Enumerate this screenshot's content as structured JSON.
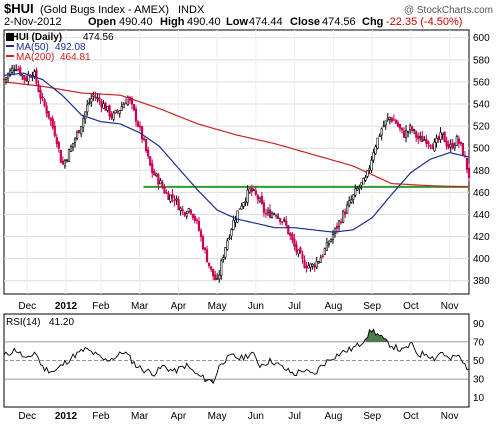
{
  "header": {
    "symbol": "$HUI",
    "name": "(Gold Bugs Index - AMEX)",
    "exchange": "INDX",
    "watermark": "@ StockCharts.com",
    "date": "2-Nov-2012",
    "open_label": "Open",
    "open": "490.40",
    "high_label": "High",
    "high": "490.40",
    "low_label": "Low",
    "low": "474.44",
    "close_label": "Close",
    "close": "474.56",
    "chg_label": "Chg",
    "chg": "-22.35 (-4.50%)"
  },
  "legend": {
    "price_label": "$HUI (Daily)",
    "price_value": "474.56",
    "ma50_label": "MA(50)",
    "ma50_value": "492.08",
    "ma200_label": "MA(200)",
    "ma200_value": "464.81",
    "rsi_label": "RSI(14)",
    "rsi_value": "41.20"
  },
  "colors": {
    "up_candle": "#000000",
    "down_candle": "#cc0055",
    "ma50": "#1f2f8f",
    "ma200": "#cc2222",
    "support": "#2a9d2a",
    "rsi_line": "#000000",
    "overbought_fill": "#4a7d4a",
    "oversold_fill": "#555555",
    "chg_negative": "#cc0000"
  },
  "chart_data": [
    {
      "type": "line",
      "title": "$HUI (Daily)",
      "x_axis_labels": [
        "Dec",
        "2012",
        "Feb",
        "Mar",
        "Apr",
        "May",
        "Jun",
        "Jul",
        "Aug",
        "Sep",
        "Oct",
        "Nov"
      ],
      "x_label_positions": [
        0.6,
        1.6,
        2.5,
        3.5,
        4.5,
        5.5,
        6.5,
        7.5,
        8.5,
        9.5,
        10.5,
        11.5
      ],
      "xlim": [
        0,
        12
      ],
      "y_ticks": [
        380,
        400,
        420,
        440,
        460,
        480,
        500,
        520,
        540,
        560,
        580,
        600
      ],
      "ylim": [
        368,
        607
      ],
      "grid": true,
      "support_level": 465,
      "price_anchors": [
        [
          0.0,
          562
        ],
        [
          0.3,
          575
        ],
        [
          0.55,
          562
        ],
        [
          0.75,
          570
        ],
        [
          0.95,
          546
        ],
        [
          1.15,
          530
        ],
        [
          1.35,
          510
        ],
        [
          1.5,
          484
        ],
        [
          1.7,
          498
        ],
        [
          1.95,
          518
        ],
        [
          2.15,
          538
        ],
        [
          2.3,
          548
        ],
        [
          2.55,
          540
        ],
        [
          2.8,
          528
        ],
        [
          3.0,
          536
        ],
        [
          3.2,
          546
        ],
        [
          3.4,
          528
        ],
        [
          3.6,
          506
        ],
        [
          3.8,
          480
        ],
        [
          4.0,
          470
        ],
        [
          4.2,
          458
        ],
        [
          4.4,
          455
        ],
        [
          4.6,
          442
        ],
        [
          4.8,
          446
        ],
        [
          5.0,
          430
        ],
        [
          5.15,
          410
        ],
        [
          5.35,
          388
        ],
        [
          5.5,
          378
        ],
        [
          5.7,
          410
        ],
        [
          5.9,
          432
        ],
        [
          6.1,
          448
        ],
        [
          6.35,
          462
        ],
        [
          6.55,
          455
        ],
        [
          6.75,
          440
        ],
        [
          7.0,
          442
        ],
        [
          7.25,
          432
        ],
        [
          7.5,
          410
        ],
        [
          7.75,
          395
        ],
        [
          7.95,
          393
        ],
        [
          8.15,
          400
        ],
        [
          8.35,
          412
        ],
        [
          8.55,
          426
        ],
        [
          8.75,
          440
        ],
        [
          8.95,
          452
        ],
        [
          9.1,
          462
        ],
        [
          9.35,
          472
        ],
        [
          9.55,
          500
        ],
        [
          9.75,
          518
        ],
        [
          9.95,
          528
        ],
        [
          10.1,
          524
        ],
        [
          10.3,
          512
        ],
        [
          10.5,
          518
        ],
        [
          10.7,
          508
        ],
        [
          10.9,
          508
        ],
        [
          11.1,
          502
        ],
        [
          11.3,
          512
        ],
        [
          11.5,
          500
        ],
        [
          11.7,
          508
        ],
        [
          11.85,
          496
        ],
        [
          12.0,
          475
        ]
      ],
      "ma50_anchors": [
        [
          0.0,
          566
        ],
        [
          0.5,
          568
        ],
        [
          1.0,
          562
        ],
        [
          1.5,
          548
        ],
        [
          2.0,
          530
        ],
        [
          2.5,
          524
        ],
        [
          3.0,
          522
        ],
        [
          3.5,
          514
        ],
        [
          4.0,
          502
        ],
        [
          4.5,
          482
        ],
        [
          5.0,
          462
        ],
        [
          5.5,
          444
        ],
        [
          6.0,
          436
        ],
        [
          6.5,
          432
        ],
        [
          7.0,
          428
        ],
        [
          7.5,
          428
        ],
        [
          8.0,
          426
        ],
        [
          8.5,
          424
        ],
        [
          9.0,
          426
        ],
        [
          9.5,
          437
        ],
        [
          10.0,
          458
        ],
        [
          10.5,
          478
        ],
        [
          11.0,
          490
        ],
        [
          11.5,
          496
        ],
        [
          12.0,
          492
        ]
      ],
      "ma200_anchors": [
        [
          0.0,
          560
        ],
        [
          1.0,
          556
        ],
        [
          2.0,
          550
        ],
        [
          3.0,
          548
        ],
        [
          4.0,
          536
        ],
        [
          5.0,
          522
        ],
        [
          6.0,
          512
        ],
        [
          7.0,
          504
        ],
        [
          8.0,
          494
        ],
        [
          9.0,
          484
        ],
        [
          10.0,
          468
        ],
        [
          11.0,
          466
        ],
        [
          12.0,
          465
        ]
      ]
    },
    {
      "type": "line",
      "title": "RSI(14)",
      "x_axis_labels": [
        "Dec",
        "2012",
        "Feb",
        "Mar",
        "Apr",
        "May",
        "Jun",
        "Jul",
        "Aug",
        "Sep",
        "Oct",
        "Nov"
      ],
      "x_label_positions": [
        0.6,
        1.6,
        2.5,
        3.5,
        4.5,
        5.5,
        6.5,
        7.5,
        8.5,
        9.5,
        10.5,
        11.5
      ],
      "xlim": [
        0,
        12
      ],
      "y_ticks": [
        10,
        30,
        50,
        70,
        90
      ],
      "ylim": [
        0,
        100
      ],
      "reference_lines": [
        30,
        50,
        70
      ],
      "rsi_anchors": [
        [
          0.0,
          55
        ],
        [
          0.3,
          62
        ],
        [
          0.6,
          50
        ],
        [
          0.8,
          60
        ],
        [
          1.0,
          42
        ],
        [
          1.3,
          38
        ],
        [
          1.5,
          45
        ],
        [
          1.8,
          55
        ],
        [
          2.1,
          62
        ],
        [
          2.3,
          58
        ],
        [
          2.6,
          50
        ],
        [
          2.9,
          54
        ],
        [
          3.1,
          60
        ],
        [
          3.4,
          45
        ],
        [
          3.6,
          40
        ],
        [
          3.9,
          36
        ],
        [
          4.1,
          44
        ],
        [
          4.4,
          38
        ],
        [
          4.7,
          45
        ],
        [
          5.0,
          34
        ],
        [
          5.2,
          30
        ],
        [
          5.4,
          27
        ],
        [
          5.6,
          48
        ],
        [
          5.9,
          55
        ],
        [
          6.1,
          52
        ],
        [
          6.4,
          58
        ],
        [
          6.6,
          45
        ],
        [
          6.9,
          50
        ],
        [
          7.2,
          42
        ],
        [
          7.5,
          35
        ],
        [
          7.7,
          40
        ],
        [
          8.0,
          34
        ],
        [
          8.2,
          45
        ],
        [
          8.5,
          54
        ],
        [
          8.8,
          60
        ],
        [
          9.0,
          63
        ],
        [
          9.2,
          68
        ],
        [
          9.35,
          76
        ],
        [
          9.5,
          83
        ],
        [
          9.65,
          78
        ],
        [
          9.85,
          70
        ],
        [
          10.1,
          64
        ],
        [
          10.3,
          60
        ],
        [
          10.5,
          68
        ],
        [
          10.7,
          56
        ],
        [
          10.9,
          58
        ],
        [
          11.1,
          52
        ],
        [
          11.3,
          60
        ],
        [
          11.5,
          50
        ],
        [
          11.7,
          56
        ],
        [
          11.85,
          47
        ],
        [
          12.0,
          41
        ]
      ]
    }
  ]
}
